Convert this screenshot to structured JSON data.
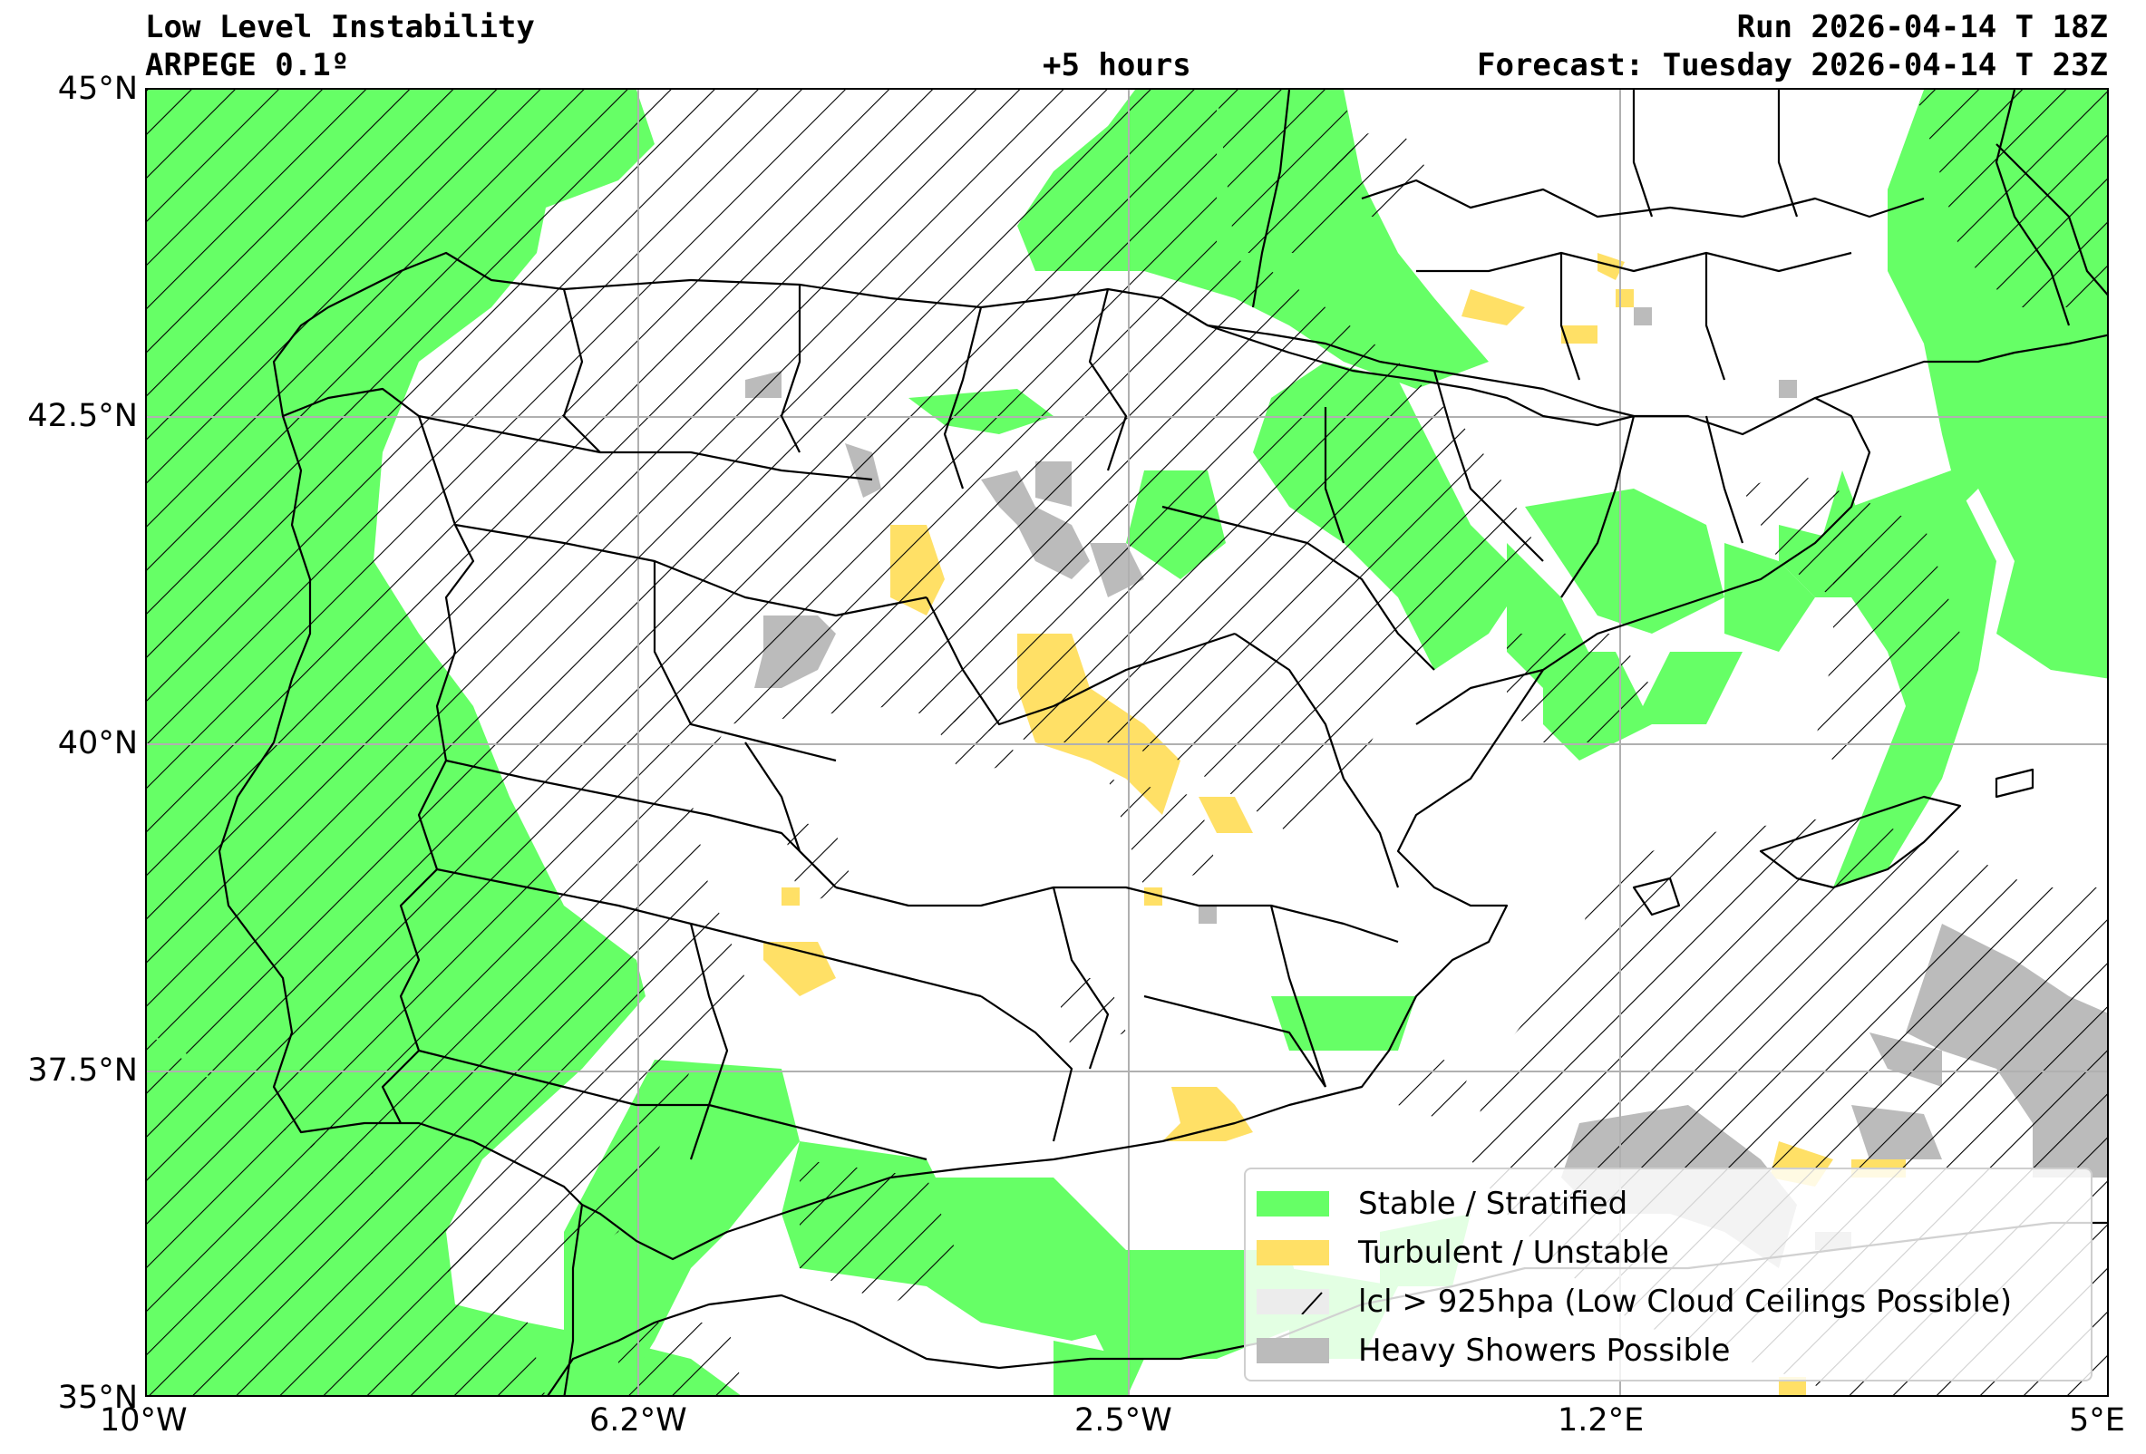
{
  "header": {
    "title": "Low Level Instability",
    "model": "ARPEGE 0.1º",
    "lead_time": "+5 hours",
    "run": "Run 2026-04-14 T 18Z",
    "forecast": "Forecast: Tuesday 2026-04-14 T 23Z"
  },
  "map": {
    "lon_range": [
      -10,
      5
    ],
    "lat_range": [
      35,
      45
    ],
    "lat_ticks": [
      {
        "value": 45,
        "label": "45°N"
      },
      {
        "value": 42.5,
        "label": "42.5°N"
      },
      {
        "value": 40,
        "label": "40°N"
      },
      {
        "value": 37.5,
        "label": "37.5°N"
      },
      {
        "value": 35,
        "label": "35°N"
      }
    ],
    "lon_ticks": [
      {
        "value": -10,
        "label": "10°W"
      },
      {
        "value": -6.2,
        "label": "6.2°W"
      },
      {
        "value": -2.5,
        "label": "2.5°W"
      },
      {
        "value": 1.2,
        "label": "1.2°E"
      },
      {
        "value": 5,
        "label": "5°E"
      }
    ],
    "grid": true,
    "colors": {
      "stable": "#66ff66",
      "turbulent": "#ffe066",
      "low_cloud_hatch": "#000000",
      "showers": "#bbbbbb",
      "borders": "#000000"
    }
  },
  "legend": {
    "position": "lower-right",
    "items": [
      {
        "label": "Stable / Stratified",
        "swatch": "stable"
      },
      {
        "label": "Turbulent / Unstable",
        "swatch": "turbulent"
      },
      {
        "label": "lcl > 925hpa (Low Cloud Ceilings Possible)",
        "swatch": "hatch"
      },
      {
        "label": "Heavy Showers Possible",
        "swatch": "showers"
      }
    ]
  }
}
